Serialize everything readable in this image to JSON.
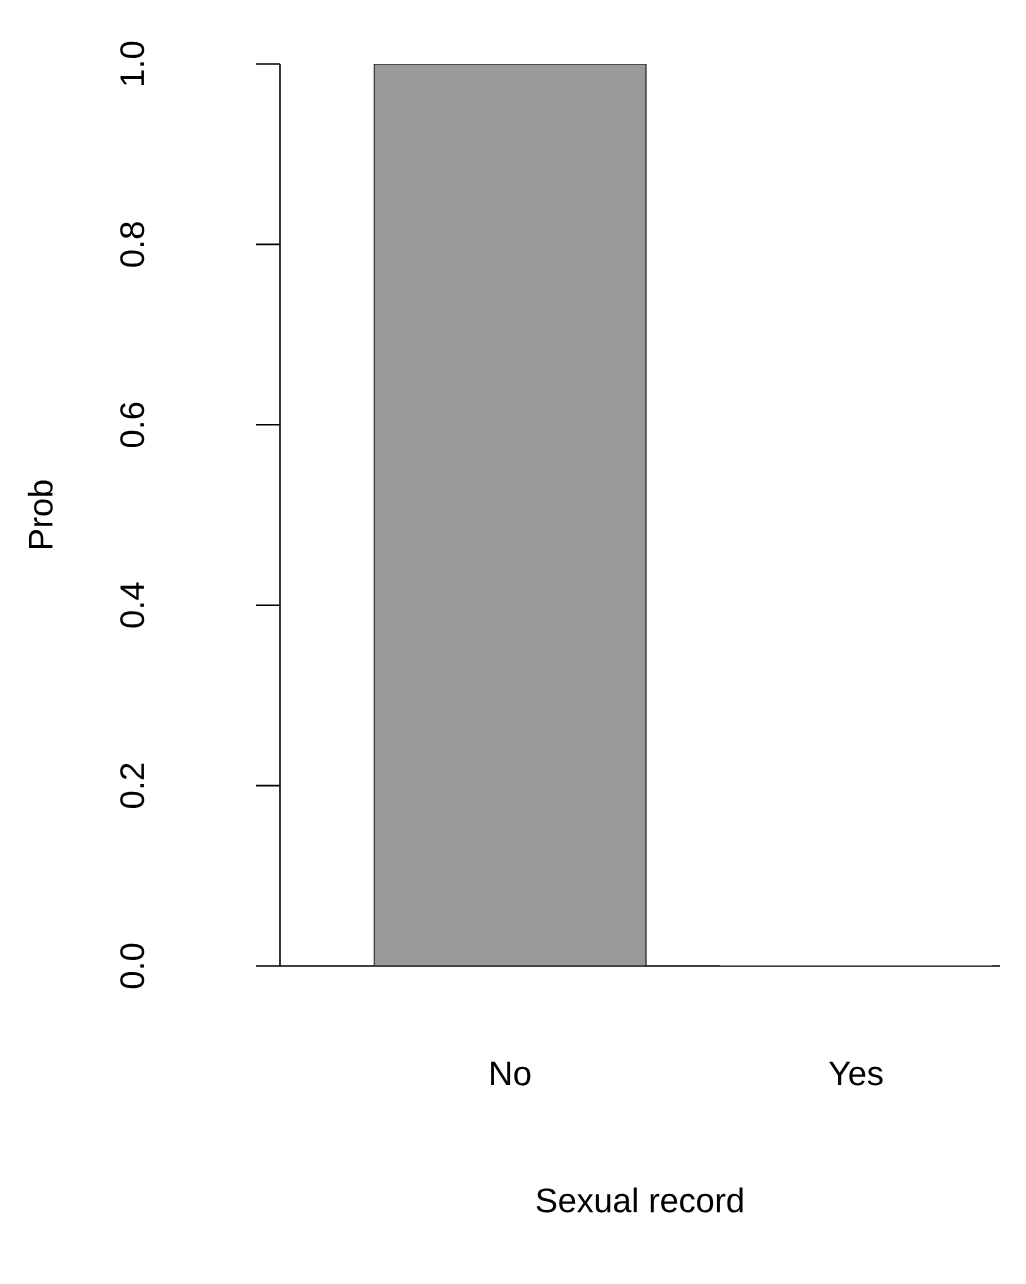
{
  "chart_data": {
    "type": "bar",
    "xlabel": "Sexual record",
    "ylabel": "Prob",
    "categories": [
      "No",
      "Yes"
    ],
    "values": [
      1,
      0
    ],
    "color": "#999999",
    "ylim": [
      0,
      1
    ],
    "yticks": [
      {
        "value": 0,
        "label": "0.0"
      },
      {
        "value": 0.2,
        "label": "0.2"
      },
      {
        "value": 0.4,
        "label": "0.4"
      },
      {
        "value": 0.6,
        "label": "0.6"
      },
      {
        "value": 0.8,
        "label": "0.8"
      },
      {
        "value": 1,
        "label": "1.0"
      }
    ]
  }
}
